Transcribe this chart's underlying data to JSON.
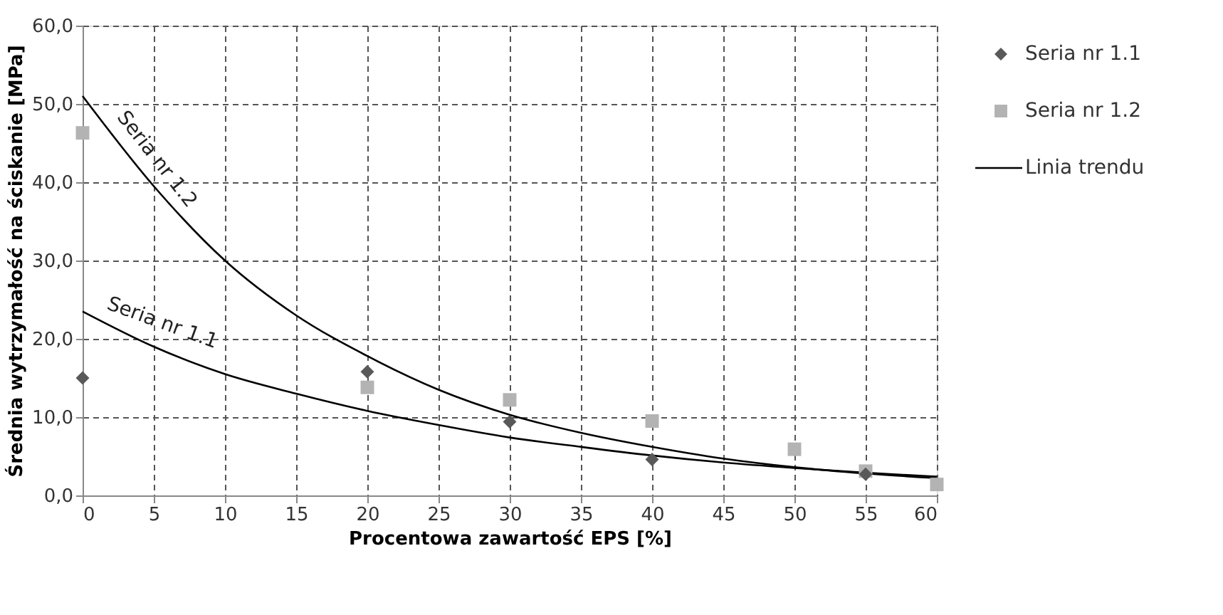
{
  "chart_data": {
    "type": "scatter",
    "xlabel": "Procentowa zawartość EPS [%]",
    "ylabel": "Średnia wytrzymałość na ściskanie [MPa]",
    "xlim": [
      0,
      60
    ],
    "xticks": [
      0,
      5,
      10,
      15,
      20,
      25,
      30,
      35,
      40,
      45,
      50,
      55,
      60
    ],
    "ylim": [
      0,
      60
    ],
    "yticks": [
      {
        "value": 0,
        "label": "0,0"
      },
      {
        "value": 10,
        "label": "10,0"
      },
      {
        "value": 20,
        "label": "20,0"
      },
      {
        "value": 30,
        "label": "30,0"
      },
      {
        "value": 40,
        "label": "40,0"
      },
      {
        "value": 50,
        "label": "50,0"
      },
      {
        "value": 60,
        "label": "60,0"
      }
    ],
    "grid": true,
    "legend": "right",
    "series": [
      {
        "name": "Seria nr 1.1",
        "marker": "diamond",
        "color": "#595959",
        "x": [
          0,
          20,
          30,
          40,
          55
        ],
        "values": [
          15.0,
          15.8,
          9.4,
          4.6,
          2.7
        ]
      },
      {
        "name": "Seria nr 1.2",
        "marker": "square",
        "color": "#b3b3b3",
        "x": [
          0,
          20,
          30,
          40,
          50,
          55,
          60
        ],
        "values": [
          46.3,
          13.8,
          12.2,
          9.5,
          5.9,
          3.1,
          1.4
        ]
      },
      {
        "name": "Linia trendu",
        "type": "line",
        "line_style": "solid",
        "color": "#000000",
        "x": [
          0,
          5,
          10,
          15,
          20,
          25,
          30,
          35,
          40,
          45,
          50,
          55,
          60
        ],
        "values": [
          23.5,
          19.0,
          15.5,
          13.0,
          10.8,
          9.0,
          7.4,
          6.2,
          5.1,
          4.2,
          3.5,
          2.9,
          2.4
        ]
      },
      {
        "type": "line",
        "line_style": "solid",
        "color": "#000000",
        "x": [
          0,
          5,
          10,
          15,
          20,
          25,
          30,
          35,
          40,
          45,
          50,
          55,
          60
        ],
        "values": [
          51.0,
          39.5,
          30.0,
          23.0,
          17.8,
          13.5,
          10.3,
          8.0,
          6.2,
          4.7,
          3.6,
          2.8,
          2.2
        ]
      }
    ],
    "annotations": [
      "Seria nr 1.2",
      "Seria nr 1.1"
    ]
  }
}
